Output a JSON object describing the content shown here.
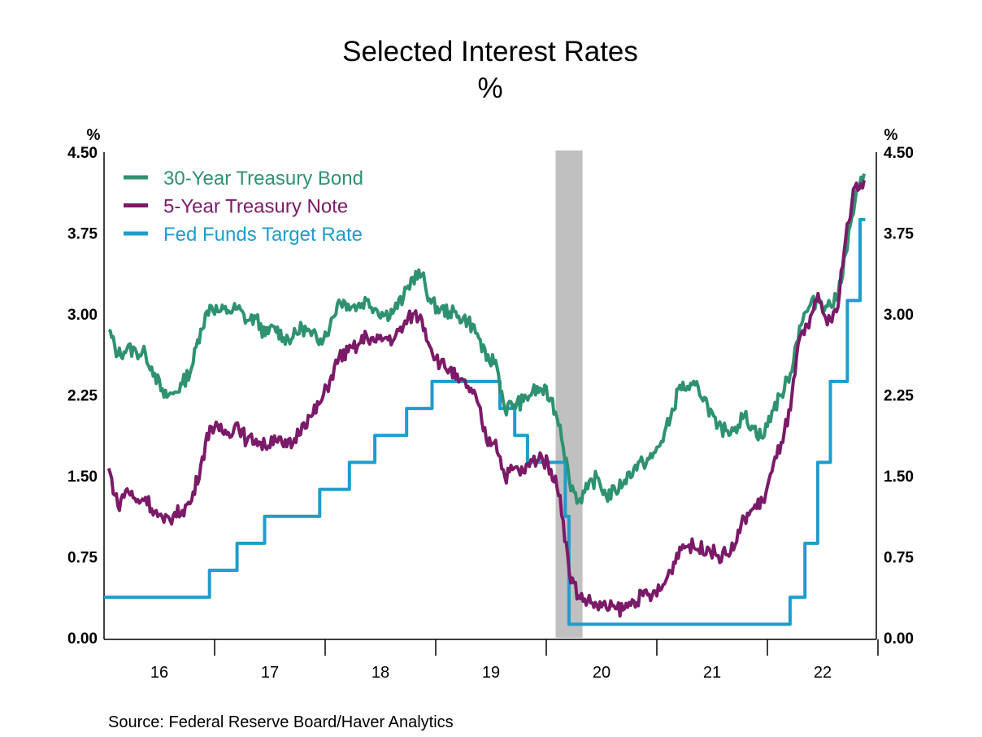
{
  "chart_data": {
    "type": "line",
    "title": "Selected Interest Rates",
    "subtitle": "%",
    "ylabel_left": "%",
    "ylabel_right": "%",
    "ylim": [
      0,
      4.5
    ],
    "yticks": [
      "0.00",
      "0.75",
      "1.50",
      "2.25",
      "3.00",
      "3.75",
      "4.50"
    ],
    "xlim": [
      "2016-01-01",
      "2023-01-01"
    ],
    "xtick_labels": [
      "16",
      "17",
      "18",
      "19",
      "20",
      "21",
      "22"
    ],
    "legend_position": "top-left",
    "grid": false,
    "recession": {
      "start": "2020-02-01",
      "end": "2020-04-30",
      "color": "#c0c0c0"
    },
    "series": [
      {
        "name": "30-Year Treasury Bond",
        "color": "#2e9270",
        "start": "2016-01",
        "frequency": "monthly",
        "values": [
          2.85,
          2.62,
          2.68,
          2.65,
          2.63,
          2.45,
          2.23,
          2.26,
          2.35,
          2.5,
          2.86,
          3.08,
          3.02,
          3.03,
          3.05,
          2.94,
          2.96,
          2.8,
          2.88,
          2.78,
          2.78,
          2.88,
          2.8,
          2.77,
          2.88,
          3.13,
          3.09,
          3.07,
          3.13,
          3.05,
          2.99,
          3.04,
          3.15,
          3.34,
          3.36,
          3.1,
          3.04,
          3.02,
          2.98,
          2.94,
          2.82,
          2.57,
          2.57,
          2.12,
          2.16,
          2.19,
          2.28,
          2.3,
          2.22,
          1.97,
          1.46,
          1.27,
          1.38,
          1.49,
          1.31,
          1.36,
          1.46,
          1.57,
          1.62,
          1.67,
          1.82,
          2.04,
          2.34,
          2.3,
          2.32,
          2.16,
          1.94,
          1.92,
          1.95,
          2.06,
          1.94,
          1.85,
          2.1,
          2.25,
          2.45,
          2.89,
          3.06,
          3.14,
          3.07,
          3.13,
          3.56,
          4.04,
          4.3
        ]
      },
      {
        "name": "5-Year Treasury Note",
        "color": "#7b1a68",
        "start": "2016-01",
        "frequency": "monthly",
        "values": [
          1.57,
          1.22,
          1.38,
          1.26,
          1.3,
          1.17,
          1.07,
          1.13,
          1.18,
          1.27,
          1.6,
          1.96,
          1.92,
          1.9,
          1.99,
          1.82,
          1.84,
          1.77,
          1.87,
          1.77,
          1.8,
          1.98,
          2.05,
          2.18,
          2.38,
          2.6,
          2.65,
          2.7,
          2.8,
          2.74,
          2.78,
          2.77,
          2.89,
          3.0,
          2.95,
          2.68,
          2.54,
          2.49,
          2.37,
          2.33,
          2.19,
          1.83,
          1.83,
          1.49,
          1.57,
          1.53,
          1.64,
          1.68,
          1.56,
          1.32,
          0.6,
          0.39,
          0.34,
          0.3,
          0.28,
          0.27,
          0.27,
          0.34,
          0.39,
          0.39,
          0.45,
          0.62,
          0.84,
          0.86,
          0.82,
          0.84,
          0.76,
          0.77,
          0.86,
          1.11,
          1.2,
          1.26,
          1.54,
          1.81,
          2.11,
          2.78,
          2.87,
          3.19,
          2.9,
          3.02,
          3.7,
          4.18,
          4.24
        ]
      },
      {
        "name": "Fed Funds Target Rate",
        "color": "#1f9ccc",
        "step": true,
        "points": [
          [
            "2016-01-01",
            0.375
          ],
          [
            "2016-12-15",
            0.625
          ],
          [
            "2017-03-16",
            0.875
          ],
          [
            "2017-06-15",
            1.125
          ],
          [
            "2017-12-14",
            1.375
          ],
          [
            "2018-03-22",
            1.625
          ],
          [
            "2018-06-14",
            1.875
          ],
          [
            "2018-09-27",
            2.125
          ],
          [
            "2018-12-20",
            2.375
          ],
          [
            "2019-08-01",
            2.125
          ],
          [
            "2019-09-19",
            1.875
          ],
          [
            "2019-10-31",
            1.625
          ],
          [
            "2020-03-04",
            1.125
          ],
          [
            "2020-03-16",
            0.125
          ],
          [
            "2022-03-17",
            0.375
          ],
          [
            "2022-05-05",
            0.875
          ],
          [
            "2022-06-16",
            1.625
          ],
          [
            "2022-07-28",
            2.375
          ],
          [
            "2022-09-22",
            3.125
          ],
          [
            "2022-11-03",
            3.875
          ],
          [
            "2022-11-20",
            3.875
          ]
        ]
      }
    ]
  },
  "source": "Source:  Federal Reserve Board/Haver Analytics"
}
